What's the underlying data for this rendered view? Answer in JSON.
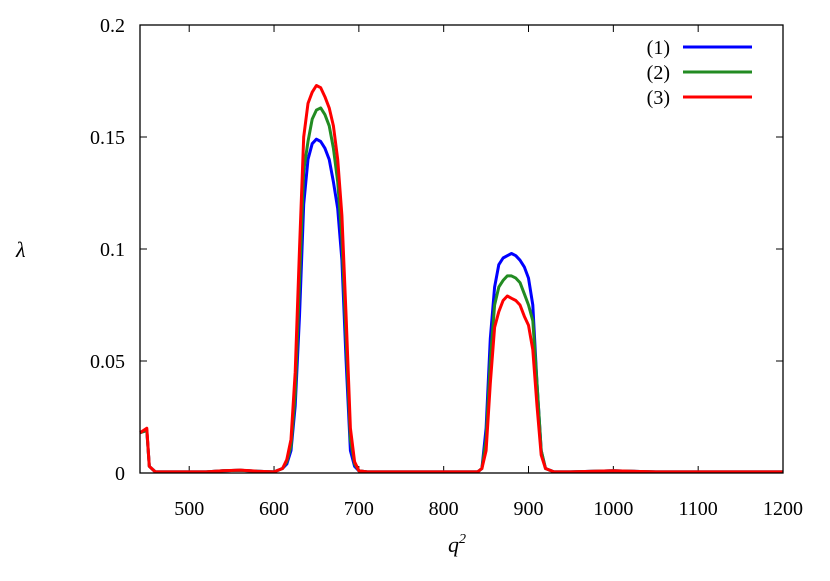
{
  "chart_data": {
    "type": "line",
    "xlabel": "q",
    "xlabel_superscript": "2",
    "ylabel": "λ",
    "xlim": [
      442,
      1200
    ],
    "ylim": [
      0,
      0.2
    ],
    "xticks": [
      "500",
      "600",
      "700",
      "800",
      "900",
      "1000",
      "1100",
      "1200"
    ],
    "yticks": [
      "0",
      "0.05",
      "0.1",
      "0.15",
      "0.2"
    ],
    "grid": false,
    "legend": "top-right",
    "x": [
      442,
      450,
      453,
      460,
      480,
      500,
      520,
      540,
      560,
      580,
      600,
      610,
      615,
      620,
      625,
      630,
      635,
      640,
      645,
      650,
      655,
      660,
      665,
      670,
      675,
      680,
      685,
      690,
      695,
      700,
      710,
      750,
      800,
      840,
      845,
      850,
      855,
      860,
      865,
      870,
      875,
      880,
      885,
      890,
      895,
      900,
      905,
      910,
      915,
      920,
      930,
      950,
      1000,
      1050,
      1100,
      1200
    ],
    "series": [
      {
        "name": "(1)",
        "color": "#0000ff",
        "values": [
          0.018,
          0.019,
          0.003,
          0.0005,
          0.0005,
          0.0005,
          0.0005,
          0.001,
          0.0012,
          0.0008,
          0.0005,
          0.002,
          0.004,
          0.01,
          0.03,
          0.07,
          0.12,
          0.14,
          0.147,
          0.149,
          0.148,
          0.145,
          0.14,
          0.13,
          0.118,
          0.095,
          0.05,
          0.01,
          0.003,
          0.001,
          0.0005,
          0.0005,
          0.0005,
          0.0005,
          0.002,
          0.02,
          0.06,
          0.083,
          0.093,
          0.096,
          0.097,
          0.098,
          0.097,
          0.095,
          0.092,
          0.087,
          0.075,
          0.04,
          0.01,
          0.002,
          0.0005,
          0.0005,
          0.001,
          0.0005,
          0.0005,
          0.0005
        ]
      },
      {
        "name": "(2)",
        "color": "#228b22",
        "values": [
          0.018,
          0.019,
          0.003,
          0.0005,
          0.0005,
          0.0005,
          0.0005,
          0.001,
          0.0012,
          0.0008,
          0.0005,
          0.002,
          0.005,
          0.012,
          0.035,
          0.085,
          0.135,
          0.148,
          0.158,
          0.162,
          0.163,
          0.16,
          0.155,
          0.145,
          0.13,
          0.105,
          0.06,
          0.015,
          0.004,
          0.001,
          0.0005,
          0.0005,
          0.0005,
          0.0005,
          0.002,
          0.015,
          0.05,
          0.075,
          0.083,
          0.086,
          0.088,
          0.088,
          0.087,
          0.085,
          0.08,
          0.075,
          0.068,
          0.04,
          0.01,
          0.002,
          0.0005,
          0.0005,
          0.001,
          0.0005,
          0.0005,
          0.0005
        ]
      },
      {
        "name": "(3)",
        "color": "#ff0000",
        "values": [
          0.018,
          0.02,
          0.003,
          0.0005,
          0.0005,
          0.0005,
          0.0005,
          0.001,
          0.0013,
          0.0008,
          0.0005,
          0.002,
          0.006,
          0.015,
          0.045,
          0.1,
          0.15,
          0.165,
          0.17,
          0.173,
          0.172,
          0.168,
          0.163,
          0.155,
          0.14,
          0.115,
          0.07,
          0.02,
          0.005,
          0.001,
          0.0005,
          0.0005,
          0.0005,
          0.0005,
          0.002,
          0.01,
          0.04,
          0.065,
          0.072,
          0.077,
          0.079,
          0.078,
          0.077,
          0.075,
          0.07,
          0.066,
          0.055,
          0.03,
          0.008,
          0.002,
          0.0005,
          0.0005,
          0.001,
          0.0005,
          0.0005,
          0.0005
        ]
      }
    ]
  }
}
